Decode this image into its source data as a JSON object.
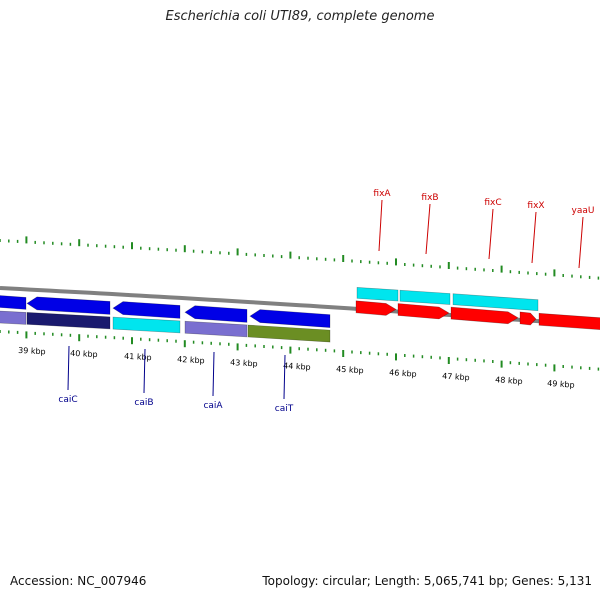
{
  "title": "Escherichia coli UTI89, complete genome",
  "footer": {
    "accession": "Accession: NC_007946",
    "summary": "Topology: circular; Length: 5,065,741 bp; Genes: 5,131"
  },
  "colors": {
    "backbone": "#808080",
    "forward_cds": "#0000e6",
    "reverse_cds": "#ff0000",
    "cyan_feature": "#00e5ee",
    "lavender_feature": "#7a6fd0",
    "navy_feature": "#1a1a6e",
    "olive_feature": "#6b8e23",
    "upper_ticks": "#228b22",
    "lower_ticks": "#228b22",
    "upper_labels": "#cc0000",
    "lower_labels": "#00008b"
  },
  "scale": {
    "unit": "kbp",
    "labels": [
      "39 kbp",
      "40 kbp",
      "41 kbp",
      "42 kbp",
      "43 kbp",
      "44 kbp",
      "45 kbp",
      "46 kbp",
      "47 kbp",
      "48 kbp",
      "49 kbp"
    ]
  },
  "genes_upper": [
    {
      "name": "fixA"
    },
    {
      "name": "fixB"
    },
    {
      "name": "fixC"
    },
    {
      "name": "fixX"
    },
    {
      "name": "yaaU"
    }
  ],
  "genes_lower": [
    {
      "name": "caiC"
    },
    {
      "name": "caiB"
    },
    {
      "name": "caiA"
    },
    {
      "name": "caiT"
    }
  ]
}
